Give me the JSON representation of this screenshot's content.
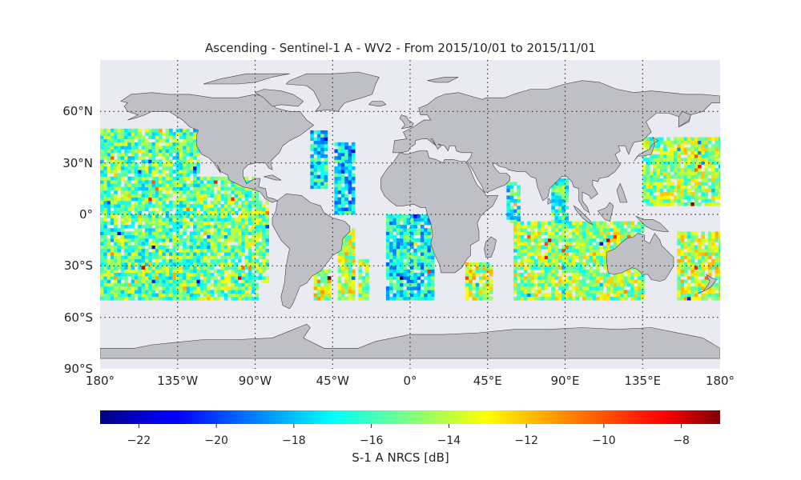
{
  "title": "Ascending - Sentinel-1 A - WV2 - From 2015/10/01 to 2015/11/01",
  "colors": {
    "ocean": "#eaeaf2",
    "land": "#bfbfc6",
    "coast": "#444444",
    "grid": "#333333"
  },
  "map": {
    "lon_range": [
      -180,
      180
    ],
    "lat_range": [
      -90,
      90
    ],
    "lat_ticks": [
      {
        "value": 60,
        "label": "60°N"
      },
      {
        "value": 30,
        "label": "30°N"
      },
      {
        "value": 0,
        "label": "0°"
      },
      {
        "value": -30,
        "label": "30°S"
      },
      {
        "value": -60,
        "label": "60°S"
      },
      {
        "value": -90,
        "label": "90°S"
      }
    ],
    "lon_ticks": [
      {
        "value": -180,
        "label": "180°"
      },
      {
        "value": -135,
        "label": "135°W"
      },
      {
        "value": -90,
        "label": "90°W"
      },
      {
        "value": -45,
        "label": "45°W"
      },
      {
        "value": 0,
        "label": "0°"
      },
      {
        "value": 45,
        "label": "45°E"
      },
      {
        "value": 90,
        "label": "90°E"
      },
      {
        "value": 135,
        "label": "135°E"
      },
      {
        "value": 180,
        "label": "180°"
      }
    ],
    "gridlines": "dotted",
    "data_extent_lat": [
      -50,
      50
    ]
  },
  "colorbar": {
    "colormap": "jet",
    "range": [
      -23,
      -7
    ],
    "ticks": [
      {
        "value": -22,
        "label": "−22"
      },
      {
        "value": -20,
        "label": "−20"
      },
      {
        "value": -18,
        "label": "−18"
      },
      {
        "value": -16,
        "label": "−16"
      },
      {
        "value": -14,
        "label": "−14"
      },
      {
        "value": -12,
        "label": "−12"
      },
      {
        "value": -10,
        "label": "−10"
      },
      {
        "value": -8,
        "label": "−8"
      }
    ],
    "label": "S-1 A NRCS [dB]"
  },
  "swaths": [
    {
      "lon": [
        -180,
        -122
      ],
      "lat": [
        -50,
        50
      ],
      "mean": -15.5
    },
    {
      "lon": [
        -122,
        -88
      ],
      "lat": [
        -50,
        22
      ],
      "mean": -15.0
    },
    {
      "lon": [
        -88,
        -82
      ],
      "lat": [
        -40,
        8
      ],
      "mean": -15.5
    },
    {
      "lon": [
        -180,
        -122
      ],
      "lat": [
        -50,
        -28
      ],
      "mean": -14.0
    },
    {
      "lon": [
        -58,
        -48
      ],
      "lat": [
        15,
        48
      ],
      "mean": -17.0
    },
    {
      "lon": [
        -44,
        -32
      ],
      "lat": [
        0,
        42
      ],
      "mean": -17.5
    },
    {
      "lon": [
        -56,
        -46
      ],
      "lat": [
        -50,
        -32
      ],
      "mean": -13.5
    },
    {
      "lon": [
        -42,
        -32
      ],
      "lat": [
        -50,
        -8
      ],
      "mean": -14.0
    },
    {
      "lon": [
        -30,
        -24
      ],
      "lat": [
        -50,
        -26
      ],
      "mean": -14.5
    },
    {
      "lon": [
        -14,
        14
      ],
      "lat": [
        -50,
        0
      ],
      "mean": -17.0
    },
    {
      "lon": [
        32,
        48
      ],
      "lat": [
        -50,
        -28
      ],
      "mean": -14.0
    },
    {
      "lon": [
        56,
        64
      ],
      "lat": [
        -5,
        18
      ],
      "mean": -16.5
    },
    {
      "lon": [
        60,
        135
      ],
      "lat": [
        -50,
        -5
      ],
      "mean": -14.5
    },
    {
      "lon": [
        82,
        92
      ],
      "lat": [
        -5,
        20
      ],
      "mean": -16.0
    },
    {
      "lon": [
        135,
        180
      ],
      "lat": [
        5,
        45
      ],
      "mean": -14.5
    },
    {
      "lon": [
        155,
        180
      ],
      "lat": [
        -50,
        -10
      ],
      "mean": -14.0
    }
  ]
}
